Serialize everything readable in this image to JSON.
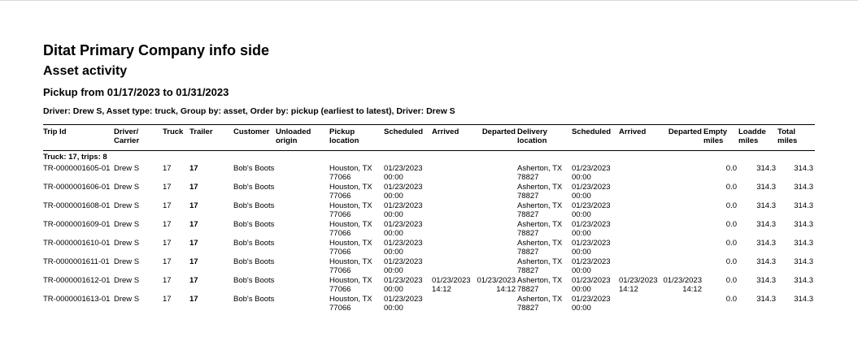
{
  "report": {
    "company": "Ditat Primary Company info side",
    "title": "Asset activity",
    "range": "Pickup from 01/17/2023 to 01/31/2023",
    "filters": "Driver: Drew S, Asset type: truck, Group by: asset, Order by: pickup (earliest to latest), Driver: Drew S"
  },
  "columns": [
    {
      "label": "Trip Id",
      "right": false
    },
    {
      "label": "Driver/ Carrier",
      "right": false
    },
    {
      "label": "Truck",
      "right": false
    },
    {
      "label": "Trailer",
      "right": false
    },
    {
      "label": "Customer",
      "right": false
    },
    {
      "label": "Unloaded origin",
      "right": false
    },
    {
      "label": "Pickup location",
      "right": false
    },
    {
      "label": "Scheduled",
      "right": false
    },
    {
      "label": "Arrived",
      "right": false
    },
    {
      "label": "Departed",
      "right": true
    },
    {
      "label": "Delivery location",
      "right": false
    },
    {
      "label": "Scheduled",
      "right": false
    },
    {
      "label": "Arrived",
      "right": false
    },
    {
      "label": "Departed",
      "right": true
    },
    {
      "label": "Empty miles",
      "right": false
    },
    {
      "label": "Loadde miles",
      "right": false
    },
    {
      "label": "Total miles",
      "right": false
    }
  ],
  "group": "Truck: 17, trips: 8",
  "rows": [
    [
      "TR-0000001605-01",
      "Drew S",
      "17",
      "17",
      "Bob's Boots",
      "",
      "Houston, TX 77066",
      "01/23/2023 00:00",
      "",
      "",
      "Asherton, TX 78827",
      "01/23/2023 00:00",
      "",
      "",
      "0.0",
      "314.3",
      "314.3"
    ],
    [
      "TR-0000001606-01",
      "Drew S",
      "17",
      "17",
      "Bob's Boots",
      "",
      "Houston, TX 77066",
      "01/23/2023 00:00",
      "",
      "",
      "Asherton, TX 78827",
      "01/23/2023 00:00",
      "",
      "",
      "0.0",
      "314.3",
      "314.3"
    ],
    [
      "TR-0000001608-01",
      "Drew S",
      "17",
      "17",
      "Bob's Boots",
      "",
      "Houston, TX 77066",
      "01/23/2023 00:00",
      "",
      "",
      "Asherton, TX 78827",
      "01/23/2023 00:00",
      "",
      "",
      "0.0",
      "314.3",
      "314.3"
    ],
    [
      "TR-0000001609-01",
      "Drew S",
      "17",
      "17",
      "Bob's Boots",
      "",
      "Houston, TX 77066",
      "01/23/2023 00:00",
      "",
      "",
      "Asherton, TX 78827",
      "01/23/2023 00:00",
      "",
      "",
      "0.0",
      "314.3",
      "314.3"
    ],
    [
      "TR-0000001610-01",
      "Drew S",
      "17",
      "17",
      "Bob's Boots",
      "",
      "Houston, TX 77066",
      "01/23/2023 00:00",
      "",
      "",
      "Asherton, TX 78827",
      "01/23/2023 00:00",
      "",
      "",
      "0.0",
      "314.3",
      "314.3"
    ],
    [
      "TR-0000001611-01",
      "Drew S",
      "17",
      "17",
      "Bob's Boots",
      "",
      "Houston, TX 77066",
      "01/23/2023 00:00",
      "",
      "",
      "Asherton, TX 78827",
      "01/23/2023 00:00",
      "",
      "",
      "0.0",
      "314.3",
      "314.3"
    ],
    [
      "TR-0000001612-01",
      "Drew S",
      "17",
      "17",
      "Bob's Boots",
      "",
      "Houston, TX 77066",
      "01/23/2023 00:00",
      "01/23/2023 14:12",
      "01/23/2023 14:12",
      "Asherton, TX 78827",
      "01/23/2023 00:00",
      "01/23/2023 14:12",
      "01/23/2023 14:12",
      "0.0",
      "314.3",
      "314.3"
    ],
    [
      "TR-0000001613-01",
      "Drew S",
      "17",
      "17",
      "Bob's Boots",
      "",
      "Houston, TX 77066",
      "01/23/2023 00:00",
      "",
      "",
      "Asherton, TX 78827",
      "01/23/2023 00:00",
      "",
      "",
      "0.0",
      "314.3",
      "314.3"
    ]
  ]
}
